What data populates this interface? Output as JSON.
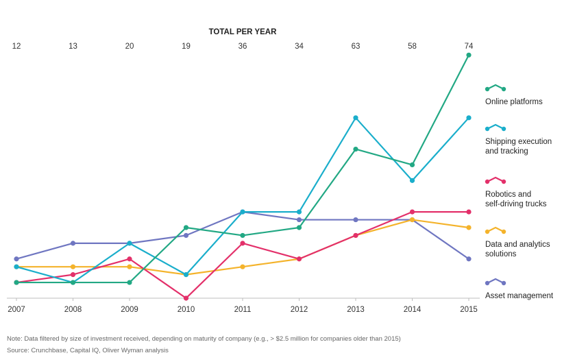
{
  "chart_data": {
    "type": "line",
    "totals_title": "TOTAL PER YEAR",
    "totals": [
      "12",
      "13",
      "20",
      "19",
      "36",
      "34",
      "63",
      "58",
      "74"
    ],
    "categories": [
      "2007",
      "2008",
      "2009",
      "2010",
      "2011",
      "2012",
      "2013",
      "2014",
      "2015"
    ],
    "ylim": [
      0,
      30
    ],
    "grid": false,
    "legend_position": "right",
    "series": [
      {
        "name": "Online platforms",
        "color": "#22a884",
        "values": [
          1,
          1,
          1,
          8,
          7,
          8,
          18,
          16,
          30
        ]
      },
      {
        "name": "Shipping execution and tracking",
        "color": "#1aaecb",
        "values": [
          3,
          1,
          6,
          2,
          10,
          10,
          22,
          14,
          22
        ]
      },
      {
        "name": "Robotics and self-driving trucks",
        "color": "#e3306a",
        "values": [
          1,
          2,
          4,
          -1,
          6,
          4,
          7,
          10,
          10
        ]
      },
      {
        "name": "Data and analytics solutions",
        "color": "#f4b32b",
        "values": [
          3,
          3,
          3,
          2,
          3,
          4,
          7,
          9,
          8
        ]
      },
      {
        "name": "Asset management",
        "color": "#6f76c1",
        "values": [
          4,
          6,
          6,
          7,
          10,
          9,
          9,
          9,
          4
        ]
      }
    ]
  },
  "legend": [
    {
      "lines": [
        "Online platforms"
      ]
    },
    {
      "lines": [
        "Shipping execution",
        "and tracking"
      ]
    },
    {
      "lines": [
        "Robotics and",
        "self-driving trucks"
      ]
    },
    {
      "lines": [
        "Data and analytics",
        "solutions"
      ]
    },
    {
      "lines": [
        "Asset management"
      ]
    }
  ],
  "footnotes": {
    "note": "Note: Data filtered by size of investment received, depending on maturity of company (e.g., > $2.5 million for companies older than 2015)",
    "source": "Source: Crunchbase, Capital IQ, Oliver Wyman analysis"
  }
}
